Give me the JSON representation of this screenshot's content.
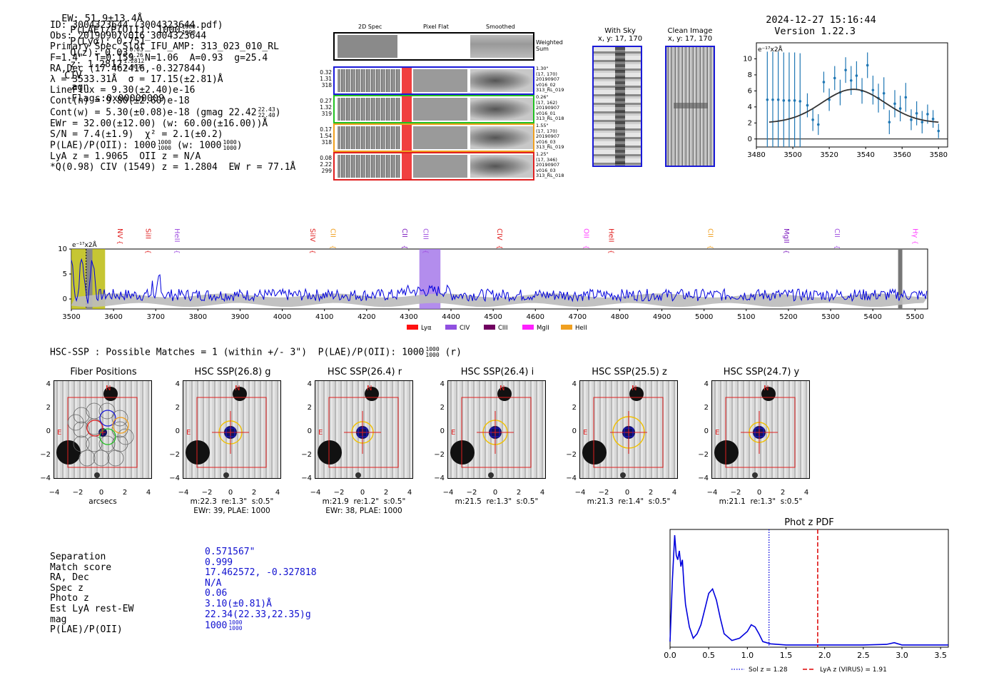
{
  "header": {
    "ew": "EW: 51.9±13.4Å",
    "plae_label": "P(LAE)/P(OII): 1000",
    "plae_hi": "1000",
    "plae_lo": "1000",
    "plya": "P(Lyα): 0.751",
    "qz_label": "Q(z): 0.03",
    "qz_hi": "0.03",
    "qz_lo": "0.26",
    "z_label": "z: 1.2812",
    "z_hi": "1.2812",
    "z_lo": "1.9075",
    "line": "CIV",
    "cls": "agn",
    "flags": "Flags:0x00000009",
    "timestamp": "2024-12-27 15:16:44",
    "version": "Version 1.22.3"
  },
  "info": {
    "id": "ID: 3004323644 (3004323644.pdf)",
    "obs": "Obs: 20190907v016_3004323644",
    "primary": "Primary Spec_Slot_IFU_AMP: 313_023_010_RL",
    "fit": "F=1.4\"  T=0.159  N=1.06  A=0.93  g=25.4",
    "radec": "RA,Dec (17.462416,-0.327844)",
    "lambda": "λ = 3533.31Å  σ = 17.15(±2.81)Å",
    "lineflux": "LineFlux = 9.30(±2.40)e-16",
    "contn": "Cont(n) = 9.80(±2.60)e-18",
    "contw": "Cont(w) = 5.30(±0.08)e-18 (gmag 22.42",
    "contw_hi": "22.43",
    "contw_lo": "22.40",
    "ewr": "EWr = 32.00(±12.00) (w: 60.00(±16.00))Å",
    "sn": "S/N = 7.4(±1.9)  χ² = 2.1(±0.2)",
    "plae": "P(LAE)/P(OII): 1000",
    "plae_hi": "1000",
    "plae_lo": "1000",
    "plae_w": "(w: 1000",
    "plae_w_hi": "1000",
    "plae_w_lo": "1000",
    "lya_z": "LyA z = 1.9065  OII z = N/A",
    "q": "*Q(0.98) CIV (1549) z = 1.2804  EW r = 77.1Å"
  },
  "cutouts": {
    "col_2d": "2D Spec",
    "col_flat": "Pixel Flat",
    "col_smooth": "Smoothed",
    "weighted": "Weighted Sum",
    "rows": [
      {
        "color": "#1a1ad8",
        "left": [
          "0.32",
          "1.31",
          "318"
        ],
        "right": [
          "1.30\"",
          "(17, 170)",
          "20190907",
          "v016_02",
          "313_RL_019"
        ]
      },
      {
        "color": "#22c022",
        "left": [
          "0.27",
          "1.32",
          "319"
        ],
        "right": [
          "0.26\"",
          "(17, 162)",
          "20190907",
          "v016_01",
          "313_RL_018"
        ]
      },
      {
        "color": "#f0a020",
        "left": [
          "0.17",
          "1.54",
          "318"
        ],
        "right": [
          "1.55\"",
          "(17, 170)",
          "20190907",
          "v016_03",
          "313_RL_019"
        ]
      },
      {
        "color": "#e02020",
        "left": [
          "0.08",
          "2.22",
          "299"
        ],
        "right": [
          "1.25\"",
          "(17, 346)",
          "20190907",
          "v016_03",
          "313_RL_018"
        ]
      }
    ]
  },
  "sky": {
    "with_sky": "With Sky",
    "clean": "Clean Image",
    "coords": "x, y: 17, 170"
  },
  "line_fit_chart": {
    "type": "scatter",
    "unit": "e⁻¹⁷x2Å",
    "xlim": [
      3480,
      3585
    ],
    "ylim": [
      -1,
      12
    ],
    "xticks": [
      3480,
      3500,
      3520,
      3540,
      3560,
      3580
    ],
    "yticks": [
      0,
      2,
      4,
      6,
      8,
      10
    ],
    "points": [
      {
        "x": 3486,
        "y": 4.9,
        "e": 6
      },
      {
        "x": 3489,
        "y": 4.9,
        "e": 6
      },
      {
        "x": 3492,
        "y": 4.9,
        "e": 6
      },
      {
        "x": 3495,
        "y": 4.8,
        "e": 6
      },
      {
        "x": 3498,
        "y": 4.8,
        "e": 6
      },
      {
        "x": 3501,
        "y": 4.8,
        "e": 6
      },
      {
        "x": 3504,
        "y": 4.7,
        "e": 6
      },
      {
        "x": 3508,
        "y": 4.2,
        "e": 1.5
      },
      {
        "x": 3511,
        "y": 2.4,
        "e": 1.4
      },
      {
        "x": 3514,
        "y": 1.8,
        "e": 1.3
      },
      {
        "x": 3517,
        "y": 7.1,
        "e": 1.3
      },
      {
        "x": 3520,
        "y": 4.9,
        "e": 1.4
      },
      {
        "x": 3523,
        "y": 7.6,
        "e": 1.5
      },
      {
        "x": 3526,
        "y": 5.8,
        "e": 1.6
      },
      {
        "x": 3529,
        "y": 8.6,
        "e": 1.6
      },
      {
        "x": 3532,
        "y": 7.3,
        "e": 1.8
      },
      {
        "x": 3535,
        "y": 7.9,
        "e": 1.8
      },
      {
        "x": 3538,
        "y": 6.0,
        "e": 1.6
      },
      {
        "x": 3541,
        "y": 9.2,
        "e": 1.6
      },
      {
        "x": 3544,
        "y": 6.1,
        "e": 1.8
      },
      {
        "x": 3547,
        "y": 5.1,
        "e": 1.8
      },
      {
        "x": 3550,
        "y": 5.7,
        "e": 2.0
      },
      {
        "x": 3553,
        "y": 2.1,
        "e": 1.5
      },
      {
        "x": 3556,
        "y": 4.4,
        "e": 1.7
      },
      {
        "x": 3559,
        "y": 3.8,
        "e": 1.6
      },
      {
        "x": 3562,
        "y": 5.2,
        "e": 1.8
      },
      {
        "x": 3565,
        "y": 2.4,
        "e": 1.3
      },
      {
        "x": 3568,
        "y": 3.2,
        "e": 1.5
      },
      {
        "x": 3571,
        "y": 2.1,
        "e": 1.4
      },
      {
        "x": 3574,
        "y": 3.1,
        "e": 1.2
      },
      {
        "x": 3577,
        "y": 2.5,
        "e": 1.1
      },
      {
        "x": 3580,
        "y": 1.0,
        "e": 0.9
      }
    ],
    "model": {
      "center": 3533.3,
      "sigma": 17.15,
      "amp": 4.2,
      "base": 2.0
    }
  },
  "spectrum_chart": {
    "type": "line",
    "unit": "e⁻¹⁷x2Å",
    "xlim": [
      3500,
      5530
    ],
    "ylim": [
      -2,
      10
    ],
    "xticks": [
      3500,
      3600,
      3700,
      3800,
      3900,
      4000,
      4100,
      4200,
      4300,
      4400,
      4500,
      4600,
      4700,
      4800,
      4900,
      5000,
      5100,
      5200,
      5300,
      5400,
      5500
    ],
    "yticks": [
      0,
      5,
      10
    ],
    "lines": [
      {
        "label": "NV",
        "x": 3605,
        "color": "#e02020"
      },
      {
        "label": "SiII",
        "x": 3672,
        "color": "#e02020"
      },
      {
        "label": "HeII",
        "x": 3740,
        "color": "#a050e0"
      },
      {
        "label": "SiIV",
        "x": 4062,
        "color": "#e02020"
      },
      {
        "label": "CII",
        "x": 4110,
        "color": "#f0a020"
      },
      {
        "label": "CII",
        "x": 4280,
        "color": "#8020c0"
      },
      {
        "label": "CIII",
        "x": 4330,
        "color": "#a050e0"
      },
      {
        "label": "CIV",
        "x": 4505,
        "color": "#e02020"
      },
      {
        "label": "OII",
        "x": 4710,
        "color": "#ff40ff"
      },
      {
        "label": "HeII",
        "x": 4770,
        "color": "#e02020"
      },
      {
        "label": "CII",
        "x": 5005,
        "color": "#f0a020"
      },
      {
        "label": "MgII",
        "x": 5185,
        "color": "#8020c0"
      },
      {
        "label": "CII",
        "x": 5305,
        "color": "#a050e0"
      },
      {
        "label": "Hγ",
        "x": 5490,
        "color": "#ff40ff"
      }
    ],
    "legend": [
      {
        "label": "Lyα",
        "color": "#ff1010"
      },
      {
        "label": "CIV",
        "color": "#9050e0"
      },
      {
        "label": "CIII",
        "color": "#700060"
      },
      {
        "label": "MgII",
        "color": "#ff20ff"
      },
      {
        "label": "HeII",
        "color": "#f0a020"
      }
    ]
  },
  "hsc": {
    "title": "HSC-SSP : Possible Matches = 1 (within +/- 3\")  P(LAE)/P(OII): 1000",
    "title_hi": "1000",
    "title_lo": "1000",
    "title_suffix": "(r)",
    "panels": [
      {
        "title": "Fiber Positions",
        "cap1": "arcsecs",
        "cap2": ""
      },
      {
        "title": "HSC SSP(26.8) g",
        "cap1": "m:22.3  re:1.3\"  s:0.5\"",
        "cap2": "EWr: 39, PLAE: 1000"
      },
      {
        "title": "HSC SSP(26.4) r",
        "cap1": "m:21.9  re:1.2\"  s:0.5\"",
        "cap2": "EWr: 38, PLAE: 1000"
      },
      {
        "title": "HSC SSP(26.4) i",
        "cap1": "m:21.5  re:1.3\"  s:0.5\"",
        "cap2": ""
      },
      {
        "title": "HSC SSP(25.5) z",
        "cap1": "m:21.3  re:1.4\"  s:0.5\"",
        "cap2": ""
      },
      {
        "title": "HSC SSP(24.7) y",
        "cap1": "m:21.1  re:1.3\"  s:0.5\"",
        "cap2": ""
      }
    ],
    "ticks": [
      "4",
      "2",
      "0",
      "−2",
      "−4"
    ],
    "xticks": [
      "−4",
      "−2",
      "0",
      "2",
      "4"
    ],
    "n_label": "N",
    "e_label": "E"
  },
  "match_table": {
    "labels": [
      "Separation",
      "Match score",
      "RA, Dec",
      "Spec z",
      "Photo z",
      "Est LyA rest-EW",
      "mag",
      "P(LAE)/P(OII)"
    ],
    "values": [
      "0.571567\"",
      "0.999",
      "17.462572, -0.327818",
      "N/A",
      "0.06",
      "3.10(±0.81)Å",
      "22.34(22.33,22.35)g",
      "1000"
    ],
    "plae_hi": "1000",
    "plae_lo": "1000"
  },
  "photz_chart": {
    "type": "line",
    "title": "Phot z PDF",
    "xlim": [
      0,
      3.6
    ],
    "xticks": [
      0.0,
      0.5,
      1.0,
      1.5,
      2.0,
      2.5,
      3.0,
      3.5
    ],
    "sol_z": 1.28,
    "lya_z": 1.91,
    "legend_sol": "Sol z = 1.28",
    "legend_lya": "LyA z (VIRUS) = 1.91",
    "x": [
      0.0,
      0.03,
      0.06,
      0.08,
      0.1,
      0.12,
      0.14,
      0.16,
      0.18,
      0.2,
      0.25,
      0.3,
      0.35,
      0.4,
      0.45,
      0.5,
      0.55,
      0.6,
      0.65,
      0.7,
      0.8,
      0.9,
      1.0,
      1.05,
      1.1,
      1.15,
      1.2,
      1.3,
      1.5,
      2.0,
      2.5,
      2.8,
      2.9,
      3.0,
      3.5,
      3.6
    ],
    "y": [
      0.05,
      0.6,
      1.0,
      0.82,
      0.78,
      0.86,
      0.72,
      0.78,
      0.55,
      0.38,
      0.18,
      0.08,
      0.12,
      0.2,
      0.34,
      0.48,
      0.52,
      0.42,
      0.26,
      0.12,
      0.06,
      0.08,
      0.14,
      0.2,
      0.18,
      0.12,
      0.05,
      0.03,
      0.02,
      0.02,
      0.02,
      0.025,
      0.04,
      0.02,
      0.02,
      0.02
    ]
  }
}
